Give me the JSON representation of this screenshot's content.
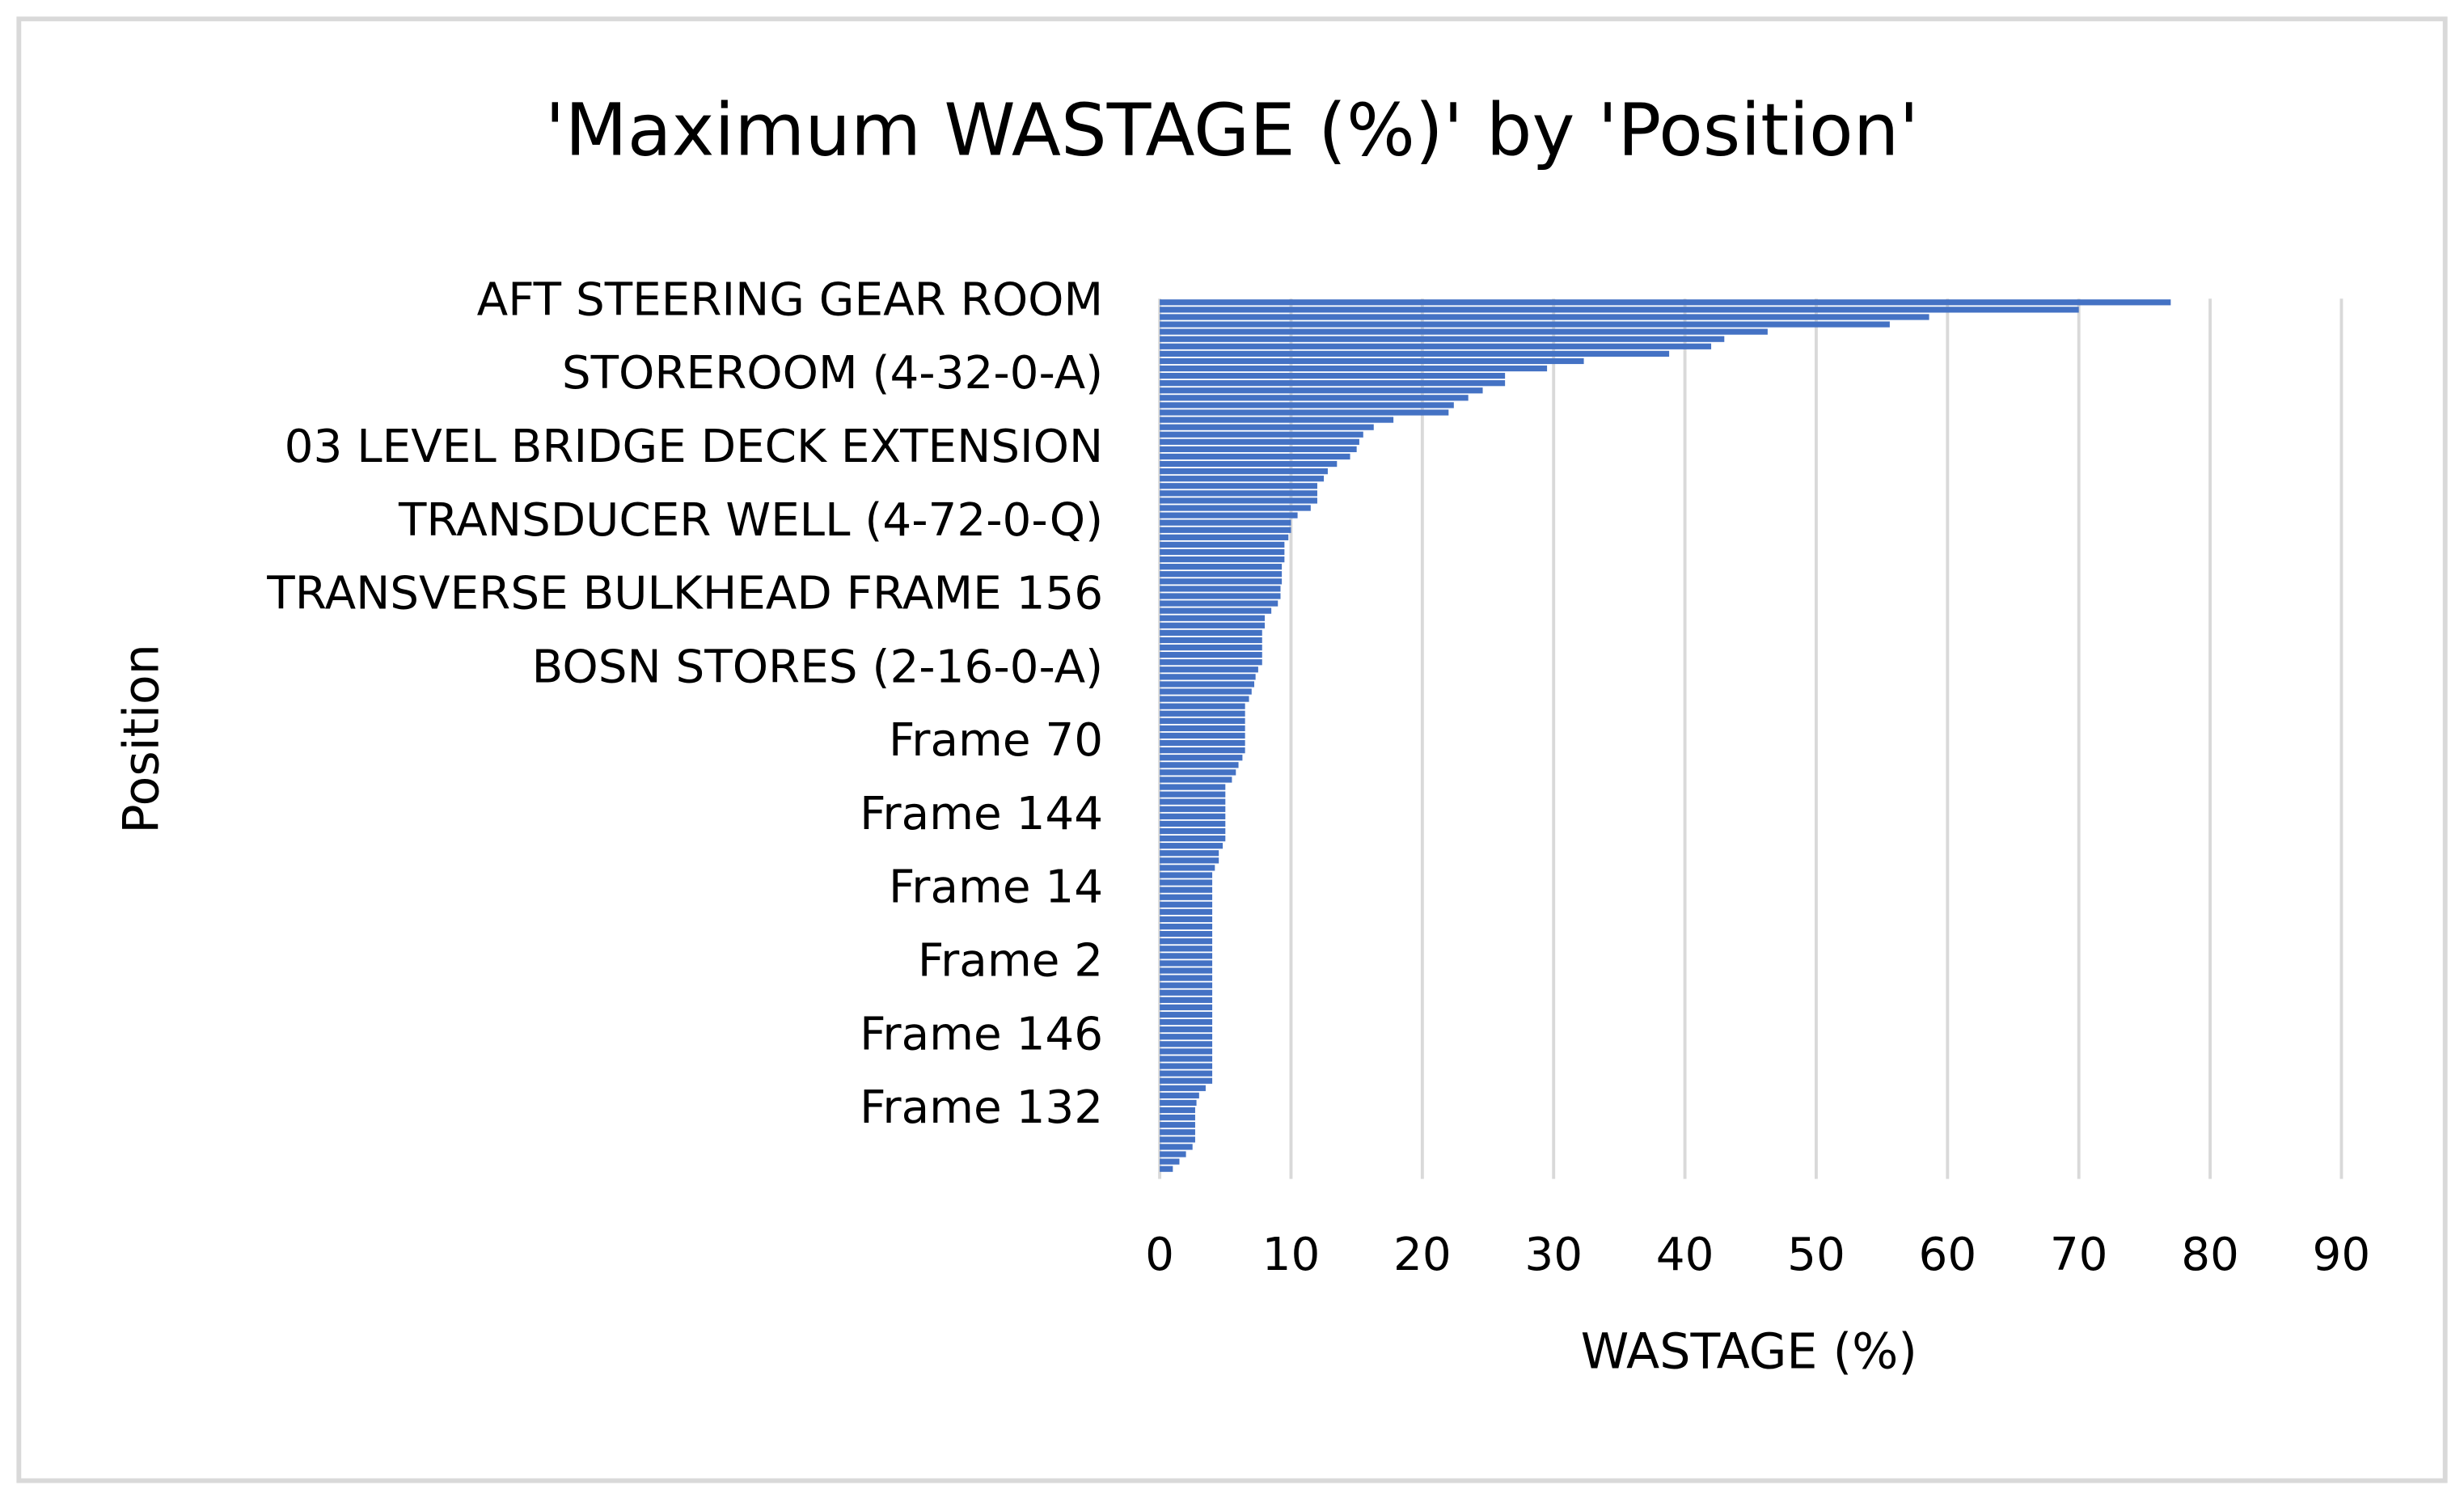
{
  "chart_data": {
    "type": "barh",
    "title": "'Maximum WASTAGE (%)' by 'Position'",
    "x_label": "WASTAGE (%)",
    "y_label": "Position",
    "color": "#4472c4",
    "grid": true,
    "xlim": [
      0,
      90
    ],
    "xticks": [
      0,
      10,
      20,
      30,
      40,
      50,
      60,
      70,
      80,
      90
    ],
    "categories": [
      "AFT STEERING GEAR ROOM",
      null,
      null,
      null,
      null,
      null,
      null,
      null,
      null,
      null,
      "STOREROOM (4-32-0-A)",
      null,
      null,
      null,
      null,
      null,
      null,
      null,
      null,
      null,
      "03 LEVEL BRIDGE DECK EXTENSION",
      null,
      null,
      null,
      null,
      null,
      null,
      null,
      null,
      null,
      "TRANSDUCER WELL (4-72-0-Q)",
      null,
      null,
      null,
      null,
      null,
      null,
      null,
      null,
      null,
      "TRANSVERSE BULKHEAD FRAME 156",
      null,
      null,
      null,
      null,
      null,
      null,
      null,
      null,
      null,
      "BOSN STORES (2-16-0-A)",
      null,
      null,
      null,
      null,
      null,
      null,
      null,
      null,
      null,
      "Frame 70",
      null,
      null,
      null,
      null,
      null,
      null,
      null,
      null,
      null,
      "Frame 144",
      null,
      null,
      null,
      null,
      null,
      null,
      null,
      null,
      null,
      "Frame 14",
      null,
      null,
      null,
      null,
      null,
      null,
      null,
      null,
      null,
      "Frame 2",
      null,
      null,
      null,
      null,
      null,
      null,
      null,
      null,
      null,
      "Frame 146",
      null,
      null,
      null,
      null,
      null,
      null,
      null,
      null,
      null,
      "Frame 132",
      null,
      null,
      null,
      null,
      null,
      null,
      null,
      null
    ],
    "values": [
      77,
      70,
      58.6,
      55.6,
      46.3,
      43,
      42,
      38.8,
      32.3,
      29.5,
      26.3,
      26.3,
      24.6,
      23.5,
      22.4,
      22,
      17.8,
      16.3,
      15.5,
      15.2,
      15,
      14.5,
      13.5,
      12.8,
      12.5,
      12,
      12,
      12,
      11.5,
      10.5,
      10,
      10,
      9.8,
      9.5,
      9.5,
      9.5,
      9.3,
      9.3,
      9.3,
      9.2,
      9.2,
      9,
      8.5,
      8,
      8,
      7.8,
      7.8,
      7.8,
      7.8,
      7.8,
      7.5,
      7.3,
      7.2,
      7,
      6.8,
      6.5,
      6.5,
      6.5,
      6.5,
      6.5,
      6.5,
      6.5,
      6.3,
      6,
      5.8,
      5.5,
      5,
      5,
      5,
      5,
      5,
      5,
      5,
      5,
      4.8,
      4.5,
      4.5,
      4.2,
      4,
      4,
      4,
      4,
      4,
      4,
      4,
      4,
      4,
      4,
      4,
      4,
      4,
      4,
      4,
      4,
      4,
      4,
      4,
      4,
      4,
      4,
      4,
      4,
      4,
      4,
      4,
      4,
      4,
      3.5,
      3,
      2.8,
      2.7,
      2.7,
      2.7,
      2.7,
      2.7,
      2.5,
      2,
      1.5,
      1
    ]
  }
}
